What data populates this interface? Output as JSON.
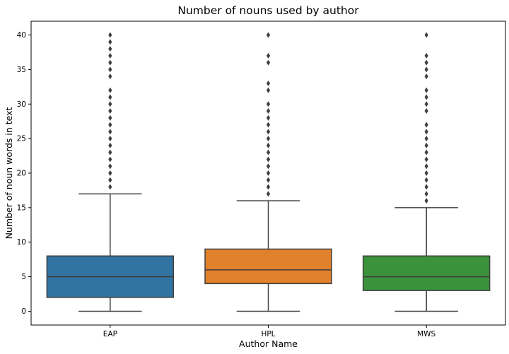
{
  "chart_data": {
    "type": "box",
    "title": "Number of nouns used by author",
    "xlabel": "Author Name",
    "ylabel": "Number of noun words in text",
    "ylim": [
      -2,
      42
    ],
    "yticks": [
      0,
      5,
      10,
      15,
      20,
      25,
      30,
      35,
      40
    ],
    "grid": false,
    "categories": [
      "EAP",
      "HPL",
      "MWS"
    ],
    "colors": [
      "#3274a1",
      "#e1812c",
      "#3a923a"
    ],
    "boxes": [
      {
        "name": "EAP",
        "whisker_low": 0,
        "q1": 2,
        "median": 5,
        "q3": 8,
        "whisker_high": 17,
        "outliers": [
          18,
          19,
          20,
          21,
          22,
          23,
          24,
          25,
          26,
          27,
          28,
          29,
          30,
          31,
          32,
          34,
          35,
          36,
          37,
          38,
          39,
          40
        ]
      },
      {
        "name": "HPL",
        "whisker_low": 0,
        "q1": 4,
        "median": 6,
        "q3": 9,
        "whisker_high": 16,
        "outliers": [
          17,
          18,
          19,
          20,
          21,
          22,
          23,
          24,
          25,
          26,
          27,
          28,
          29,
          30,
          32,
          33,
          36,
          37,
          40
        ]
      },
      {
        "name": "MWS",
        "whisker_low": 0,
        "q1": 3,
        "median": 5,
        "q3": 8,
        "whisker_high": 15,
        "outliers": [
          16,
          17,
          18,
          19,
          20,
          21,
          22,
          23,
          24,
          25,
          26,
          27,
          29,
          30,
          31,
          32,
          34,
          35,
          36,
          37,
          40
        ]
      }
    ]
  }
}
